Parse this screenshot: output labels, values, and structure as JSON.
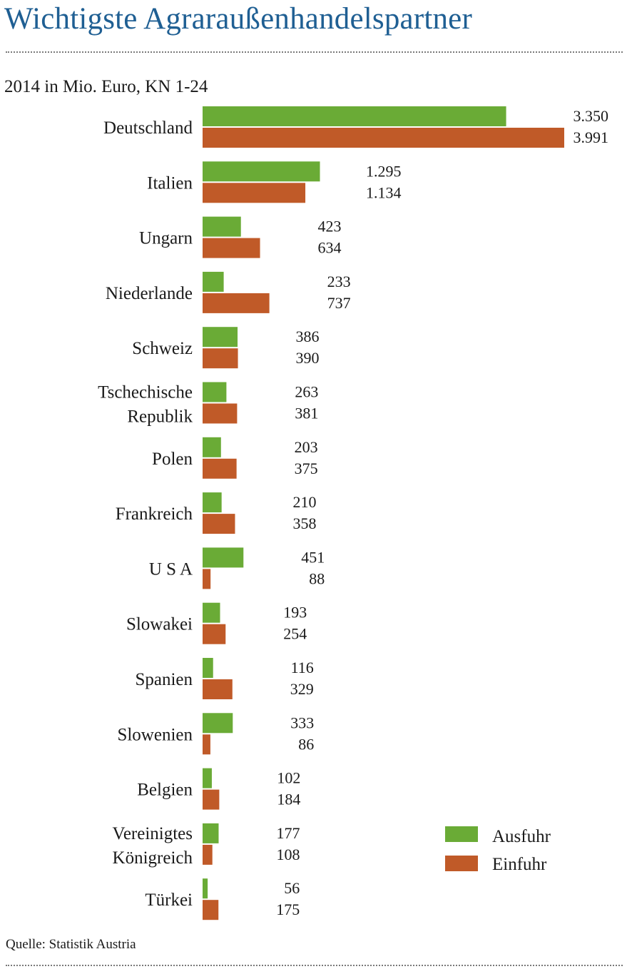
{
  "header": {
    "title": "Wichtigste Agraraußenhandelspartner",
    "subtitle": "2014 in Mio. Euro, KN 1-24"
  },
  "footer": {
    "source": "Quelle: Statistik Austria"
  },
  "colors": {
    "title": "#1f5f93",
    "ausfuhr": "#6aab36",
    "einfuhr": "#c05a28"
  },
  "chart_data": {
    "type": "bar",
    "orientation": "horizontal",
    "title": "",
    "categories": [
      [
        "Deutschland"
      ],
      [
        "Italien"
      ],
      [
        "Ungarn"
      ],
      [
        "Niederlande"
      ],
      [
        "Schweiz"
      ],
      [
        "Tschechische",
        "Republik"
      ],
      [
        "Polen"
      ],
      [
        "Frankreich"
      ],
      [
        "U S A"
      ],
      [
        "Slowakei"
      ],
      [
        "Spanien"
      ],
      [
        "Slowenien"
      ],
      [
        "Belgien"
      ],
      [
        "Vereinigtes",
        "Königreich"
      ],
      [
        "Türkei"
      ]
    ],
    "series": [
      {
        "name": "Ausfuhr",
        "color": "#6aab36",
        "values": [
          3350,
          1295,
          423,
          233,
          386,
          263,
          203,
          210,
          451,
          193,
          116,
          333,
          102,
          177,
          56
        ],
        "labels": [
          "3.350",
          "1.295",
          "423",
          "233",
          "386",
          "263",
          "203",
          "210",
          "451",
          "193",
          "116",
          "333",
          "102",
          "177",
          "56"
        ]
      },
      {
        "name": "Einfuhr",
        "color": "#c05a28",
        "values": [
          3991,
          1134,
          634,
          737,
          390,
          381,
          375,
          358,
          88,
          254,
          329,
          86,
          184,
          108,
          175
        ],
        "labels": [
          "3.991",
          "1.134",
          "634",
          "737",
          "390",
          "381",
          "375",
          "358",
          "88",
          "254",
          "329",
          "86",
          "184",
          "108",
          "175"
        ]
      }
    ],
    "xlim": [
      0,
      3991
    ],
    "grid": false,
    "legend_position": "bottom-right"
  }
}
